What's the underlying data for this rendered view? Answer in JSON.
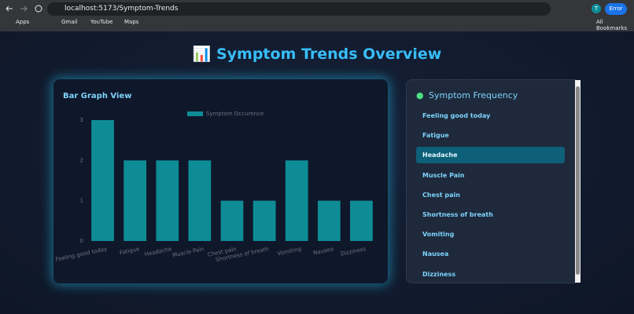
{
  "browser": {
    "url": "localhost:5173/Symptom-Trends",
    "bookmarks": [
      "Apps",
      "Gmail",
      "YouTube",
      "Maps"
    ],
    "all_bookmarks": "All Bookmarks",
    "profile": "T",
    "error_button": "Error"
  },
  "header": {
    "title": "Symptom Trends Overview"
  },
  "chart_data": {
    "type": "bar",
    "title": "Bar Graph View",
    "legend": "Symptom Occurence",
    "color": "#0e8c96",
    "categories": [
      "Feeling good today",
      "Fatigue",
      "Headache",
      "Muscle Pain",
      "Chest pain",
      "Shortness of breath",
      "Vomiting",
      "Nausea",
      "Dizziness"
    ],
    "values": [
      3,
      2,
      2,
      2,
      1,
      1,
      2,
      1,
      1
    ],
    "ylim": [
      0,
      3
    ],
    "yticks": [
      0,
      1,
      2,
      3
    ],
    "grid": false
  },
  "symptom_list": {
    "title": "Symptom Frequency",
    "selected_index": 2,
    "items": [
      "Feeling good today",
      "Fatigue",
      "Headache",
      "Muscle Pain",
      "Chest pain",
      "Shortness of breath",
      "Vomiting",
      "Nausea",
      "Dizziness"
    ]
  }
}
